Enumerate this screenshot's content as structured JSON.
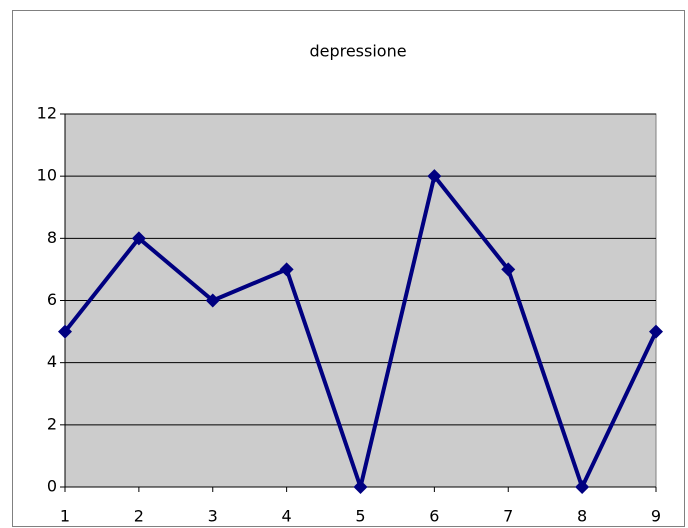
{
  "chart_data": {
    "type": "line",
    "title": "depressione",
    "x": [
      1,
      2,
      3,
      4,
      5,
      6,
      7,
      8,
      9
    ],
    "series": [
      {
        "name": "depressione",
        "color": "#000080",
        "values": [
          5,
          8,
          6,
          7,
          0,
          10,
          7,
          0,
          5
        ]
      }
    ],
    "xlim": [
      1,
      9
    ],
    "xticks": [
      1,
      2,
      3,
      4,
      5,
      6,
      7,
      8,
      9
    ],
    "ylim": [
      0,
      12
    ],
    "yticks": [
      0,
      2,
      4,
      6,
      8,
      10,
      12
    ],
    "grid": true,
    "plot_background": "#cccccc"
  }
}
